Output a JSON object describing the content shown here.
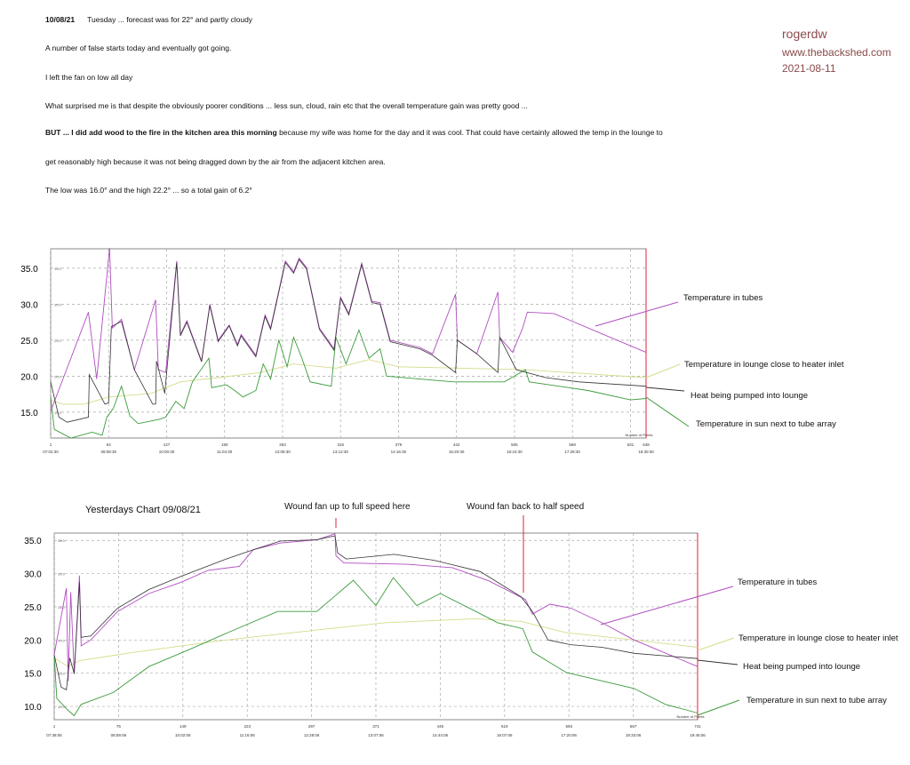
{
  "notes": {
    "date": "10/08/21",
    "heading_rest": "Tuesday  ...  forecast was for 22° and partly cloudy",
    "lines": [
      "A number of false starts today and eventually got going.",
      "I left the fan on low all day",
      "What surprised me is that despite the obviously poorer conditions  ...  less sun, cloud, rain etc that the overall temperature gain was pretty good  ...",
      "because my wife was home for the day and it was cool. That could have certainly allowed the temp in the lounge to",
      "get reasonably high because it was not being dragged down by the air from the adjacent kitchen area.",
      "The low was 16.0° and the high 22.2°  ...  so a total gain of 6.2°"
    ],
    "bold_part": "BUT  ...  I did add wood to the fire in the kitchen area this morning"
  },
  "watermark": {
    "user": "rogerdw",
    "site": "www.thebackshed.com",
    "date": "2021-08-11"
  },
  "colors": {
    "tubes": "#b04cc0",
    "heat": "#333333",
    "lounge": "#d4dc8a",
    "sun": "#3c9a3c",
    "marker": "#e0203a"
  },
  "chart_data": [
    {
      "type": "line",
      "title": "",
      "xlabel": "Number of Points",
      "ylim": [
        11.4,
        37.7
      ],
      "xlim": [
        1,
        648
      ],
      "yticks": [
        15.0,
        20.0,
        25.0,
        30.0,
        35.0
      ],
      "ytick_labels": [
        "15.0",
        "20.0",
        "25.0",
        "30.0",
        "35.0"
      ],
      "xticks": [
        1,
        64,
        127,
        190,
        253,
        316,
        379,
        442,
        505,
        568,
        631,
        648
      ],
      "xtick_labels": [
        "1",
        "64",
        "127",
        "190",
        "253",
        "316",
        "379",
        "442",
        "505",
        "568",
        "631",
        "648"
      ],
      "time_labels": [
        "07:02:30",
        "08:08:30",
        "10:00:30",
        "11:04:30",
        "12:08:30",
        "13:12:30",
        "14:16:30",
        "15:20:30",
        "16:24:30",
        "17:28:30",
        "18:30:30"
      ],
      "grid": true,
      "series": [
        {
          "name": "Temperature in tubes",
          "key": "tubes",
          "x": [
            1,
            42,
            51,
            65,
            68,
            78,
            92,
            115,
            118,
            126,
            138,
            142,
            149,
            165,
            174,
            183,
            195,
            204,
            208,
            224,
            234,
            240,
            256,
            265,
            271,
            279,
            293,
            309,
            316,
            325,
            339,
            350,
            359,
            370,
            402,
            416,
            441,
            443,
            464,
            487,
            489,
            503,
            514,
            519,
            548,
            594,
            648
          ],
          "y": [
            15.1,
            28.9,
            19.6,
            37.8,
            26.7,
            27.9,
            20.9,
            30.6,
            20.9,
            20.5,
            36,
            25.8,
            27.7,
            22.1,
            30,
            25,
            27.1,
            24.4,
            25.8,
            22.9,
            28.5,
            26.7,
            36,
            34.5,
            36.4,
            35.1,
            26.7,
            23.8,
            31,
            28.7,
            35.7,
            30.4,
            30.2,
            25,
            24,
            23.1,
            31.4,
            25,
            23.1,
            31.7,
            25.4,
            23.3,
            26.7,
            28.9,
            28.7,
            26.2,
            23.3
          ]
        },
        {
          "name": "Heat being pumped into lounge",
          "key": "heat",
          "x": [
            1,
            10,
            19,
            42,
            43,
            60,
            64,
            67,
            78,
            92,
            112,
            115,
            116,
            125,
            138,
            142,
            149,
            165,
            174,
            183,
            195,
            204,
            208,
            224,
            234,
            240,
            256,
            265,
            271,
            279,
            293,
            309,
            316,
            325,
            339,
            350,
            359,
            370,
            402,
            416,
            441,
            443,
            464,
            487,
            489,
            507,
            539,
            575,
            648
          ],
          "y": [
            19.2,
            14.3,
            13.6,
            14.3,
            20.2,
            16.1,
            16.3,
            26.9,
            27.6,
            20.9,
            16.1,
            16.1,
            22.1,
            17.6,
            35.8,
            25.6,
            27.5,
            22,
            29.8,
            24.8,
            27,
            24.2,
            25.6,
            22.7,
            28.3,
            26.5,
            35.8,
            34.3,
            36.2,
            34.9,
            26.5,
            23.6,
            30.8,
            28.5,
            35.5,
            30.2,
            30,
            24.8,
            23.8,
            22.9,
            20.5,
            25,
            23.1,
            20.5,
            25.4,
            20.9,
            19.8,
            19.2,
            18.6
          ]
        },
        {
          "name": "Temperature in lounge close to heater inlet",
          "key": "lounge",
          "x": [
            1,
            14,
            37,
            64,
            110,
            142,
            183,
            229,
            265,
            311,
            347,
            379,
            448,
            517,
            648
          ],
          "y": [
            16.7,
            16.1,
            16.1,
            17.1,
            17.6,
            19.2,
            19.8,
            20.5,
            21.7,
            21.1,
            22.3,
            21.3,
            21.1,
            20.9,
            19.8
          ]
        },
        {
          "name": "Temperature in sun next to tube array",
          "key": "sun",
          "x": [
            1,
            5,
            23,
            46,
            57,
            62,
            69,
            78,
            87,
            96,
            119,
            126,
            137,
            146,
            155,
            173,
            176,
            192,
            201,
            210,
            224,
            232,
            240,
            249,
            258,
            265,
            274,
            283,
            306,
            311,
            322,
            336,
            347,
            359,
            366,
            402,
            439,
            494,
            517,
            521,
            585,
            631,
            648
          ],
          "y": [
            17.1,
            12.6,
            11.4,
            12.2,
            11.8,
            14.3,
            15.5,
            18.6,
            14.5,
            13.4,
            14,
            14.3,
            16.5,
            15.5,
            19.2,
            22.5,
            18.4,
            18.8,
            18,
            17.1,
            18,
            21.7,
            19.6,
            25,
            21.3,
            25.4,
            22.5,
            19.2,
            18.6,
            25.4,
            21.7,
            26.4,
            22.5,
            23.8,
            20,
            19.6,
            19.2,
            19.2,
            20.9,
            19.2,
            18,
            16.7,
            16.9
          ]
        }
      ],
      "legend": [
        "Temperature in tubes",
        "Temperature in lounge close to heater inlet",
        "Heat being pumped into lounge",
        "Temperature in sun next to tube array"
      ]
    },
    {
      "type": "line",
      "title": "Yesterdays Chart   09/08/21",
      "xlabel": "Number of Points",
      "ylim": [
        8.0,
        36.1
      ],
      "xlim": [
        1,
        741
      ],
      "yticks": [
        10.0,
        15.0,
        20.0,
        25.0,
        30.0,
        35.0
      ],
      "ytick_labels": [
        "10.0",
        "15.0",
        "20.0",
        "25.0",
        "30.0",
        "35.0"
      ],
      "xticks": [
        1,
        75,
        149,
        223,
        297,
        371,
        445,
        519,
        593,
        667,
        741
      ],
      "xtick_labels": [
        "1",
        "75",
        "149",
        "223",
        "297",
        "371",
        "445",
        "519",
        "593",
        "667",
        "741"
      ],
      "time_labels": [
        "07:38:06",
        "08:59:06",
        "10:02:06",
        "11:16:06",
        "12:28:06",
        "13:07:06",
        "14:44:06",
        "16:07:06",
        "17:20:06",
        "18:33:06",
        "19:46:06"
      ],
      "grid": true,
      "annotations": [
        {
          "text": "Wound fan up to full speed here",
          "x": 324
        },
        {
          "text": "Wound fan back to half speed",
          "x": 548
        }
      ],
      "series": [
        {
          "name": "Temperature in tubes",
          "key": "tubes",
          "x": [
            1,
            15,
            17,
            20,
            24,
            30,
            32,
            43,
            74,
            110,
            147,
            178,
            214,
            230,
            261,
            303,
            324,
            325,
            334,
            407,
            459,
            501,
            543,
            551,
            571,
            595,
            631,
            668,
            741
          ],
          "y": [
            17.8,
            27.8,
            13.8,
            27.2,
            14.9,
            29.7,
            19.1,
            20,
            24.3,
            27,
            28.7,
            30.5,
            31.1,
            33.6,
            34.6,
            35.1,
            36,
            32.7,
            31.6,
            31.4,
            30.9,
            28.9,
            26.1,
            23.9,
            25.4,
            24.8,
            22.6,
            20,
            16
          ]
        },
        {
          "name": "Heat being pumped into lounge",
          "key": "heat",
          "x": [
            1,
            9,
            15,
            19,
            24,
            30,
            32,
            43,
            74,
            110,
            147,
            199,
            230,
            261,
            303,
            324,
            327,
            337,
            392,
            438,
            491,
            538,
            551,
            569,
            595,
            631,
            668,
            741
          ],
          "y": [
            17.8,
            12.9,
            12.5,
            17.3,
            14.9,
            28.7,
            20.4,
            20.6,
            24.8,
            27.6,
            29.6,
            32.2,
            33.6,
            34.9,
            35.1,
            35.7,
            33.1,
            32.2,
            32.9,
            32,
            30.3,
            26.5,
            24.3,
            20,
            19.3,
            18.9,
            18,
            17.2
          ]
        },
        {
          "name": "Temperature in lounge close to heater inlet",
          "key": "lounge",
          "x": [
            1,
            17,
            30,
            95,
            199,
            303,
            381,
            486,
            538,
            590,
            668,
            741
          ],
          "y": [
            17.3,
            16,
            16.9,
            18.2,
            20,
            21.5,
            22.6,
            23.2,
            22.8,
            21.1,
            20,
            18.9
          ]
        },
        {
          "name": "Temperature in sun next to tube array",
          "key": "sun",
          "x": [
            1,
            4,
            17,
            24,
            32,
            69,
            110,
            157,
            204,
            258,
            303,
            345,
            371,
            391,
            418,
            445,
            486,
            511,
            540,
            551,
            590,
            668,
            704,
            741
          ],
          "y": [
            17.8,
            11.2,
            9.4,
            8.6,
            10.3,
            12.1,
            16,
            18.6,
            21.3,
            24.3,
            24.3,
            29,
            25.2,
            29.4,
            25.2,
            27,
            24.3,
            22.6,
            21.7,
            18.2,
            15.1,
            12.7,
            10.3,
            9
          ]
        }
      ],
      "legend": [
        "Temperature in tubes",
        "Temperature in lounge close to heater inlet",
        "Heat being pumped into lounge",
        "Temperature in sun next to tube array"
      ]
    }
  ]
}
